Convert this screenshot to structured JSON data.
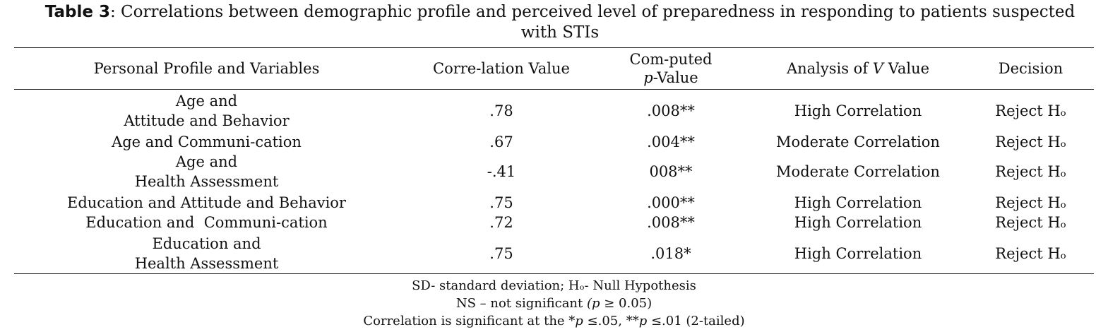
{
  "caption": {
    "label": "Table 3",
    "text": ": Correlations between demographic profile and perceived level of preparedness in responding to patients suspected with STIs"
  },
  "header": {
    "col1": "Personal Profile and Variables",
    "col2": "Corre-lation Value",
    "col3_line1": "Com-puted",
    "col3_italic": "p",
    "col3_rest": "-Value",
    "col4_pre": "Analysis of ",
    "col4_italic": "V",
    "col4_post": " Value",
    "col5": "Decision"
  },
  "rows": [
    {
      "profile": [
        "Age and",
        "Attitude and Behavior"
      ],
      "corr": ".78",
      "p": ".008**",
      "analysis": "High Correlation",
      "decision": "Reject Hₒ"
    },
    {
      "profile": [
        "Age and Communi-cation"
      ],
      "corr": ".67",
      "p": ".004**",
      "analysis": "Moderate Correlation",
      "decision": "Reject Hₒ"
    },
    {
      "profile": [
        "Age and",
        "Health Assessment"
      ],
      "corr": "-.41",
      "p": "008**",
      "analysis": "Moderate Correlation",
      "decision": "Reject Hₒ"
    },
    {
      "profile": [
        "Education and Attitude and Behavior"
      ],
      "corr": ".75",
      "p": ".000**",
      "analysis": "High Correlation",
      "decision": "Reject Hₒ"
    },
    {
      "profile": [
        "Education and  Communi-cation"
      ],
      "corr": ".72",
      "p": ".008**",
      "analysis": "High Correlation",
      "decision": "Reject Hₒ"
    },
    {
      "profile": [
        "Education and",
        "Health Assessment"
      ],
      "corr": ".75",
      "p": ".018*",
      "analysis": "High Correlation",
      "decision": "Reject Hₒ"
    }
  ],
  "notes": {
    "line1": "SD- standard deviation; Hₒ- Null Hypothesis",
    "line2_pre": "NS – not significant ",
    "line2_italic": "(p",
    "line2_post": " ≥ 0.05)",
    "line3_pre": "Correlation is significant at the *",
    "line3_p1": "p",
    "line3_mid": " ≤.05, **",
    "line3_p2": "p",
    "line3_post": " ≤.01 (2-tailed)"
  }
}
